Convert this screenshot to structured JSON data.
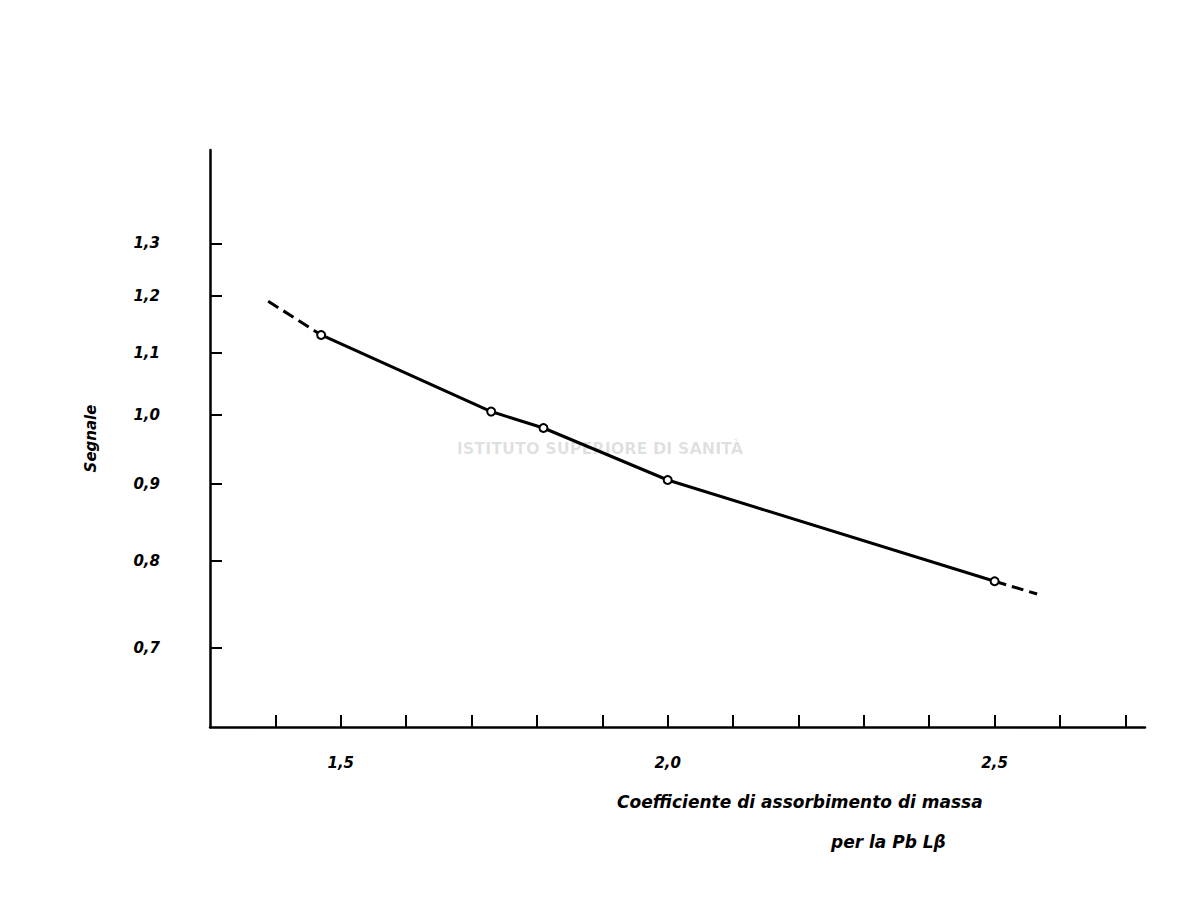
{
  "chart_data": {
    "type": "line",
    "ylabel": "Segnale",
    "xlabel": [
      "Coefficiente di assorbimento di massa",
      "per la Pb Lβ"
    ],
    "annotations": [
      "ISTITUTO SUPERIORE DI SANITÀ"
    ],
    "xlim": [
      1.3,
      2.73
    ],
    "xticks": [
      {
        "value": 1.5,
        "label": "1,5"
      },
      {
        "value": 2.0,
        "label": "2,0"
      },
      {
        "value": 2.5,
        "label": "2,5"
      }
    ],
    "ylim": [
      0.62,
      1.5
    ],
    "yticks": [
      {
        "value": 0.7,
        "label": "0,7"
      },
      {
        "value": 0.8,
        "label": "0,8"
      },
      {
        "value": 0.9,
        "label": "0,9"
      },
      {
        "value": 1.0,
        "label": "1,0"
      },
      {
        "value": 1.1,
        "label": "1,1"
      },
      {
        "value": 1.2,
        "label": "1,2"
      },
      {
        "value": 1.3,
        "label": "1,3"
      }
    ],
    "log": "y",
    "grid": false,
    "color": "#000000",
    "series": [
      {
        "x": [
          1.47,
          1.73,
          1.81,
          2.0,
          2.5
        ],
        "values": [
          1.13,
          1.005,
          0.98,
          0.905,
          0.775
        ],
        "line_style": "solid",
        "marker": "circle"
      },
      {
        "x": [
          1.389,
          1.47
        ],
        "values": [
          1.19,
          1.13
        ],
        "line_style": "dashed",
        "marker": "none"
      },
      {
        "x": [
          2.5,
          2.565
        ],
        "values": [
          0.775,
          0.76
        ],
        "line_style": "dashed",
        "marker": "none"
      }
    ]
  }
}
